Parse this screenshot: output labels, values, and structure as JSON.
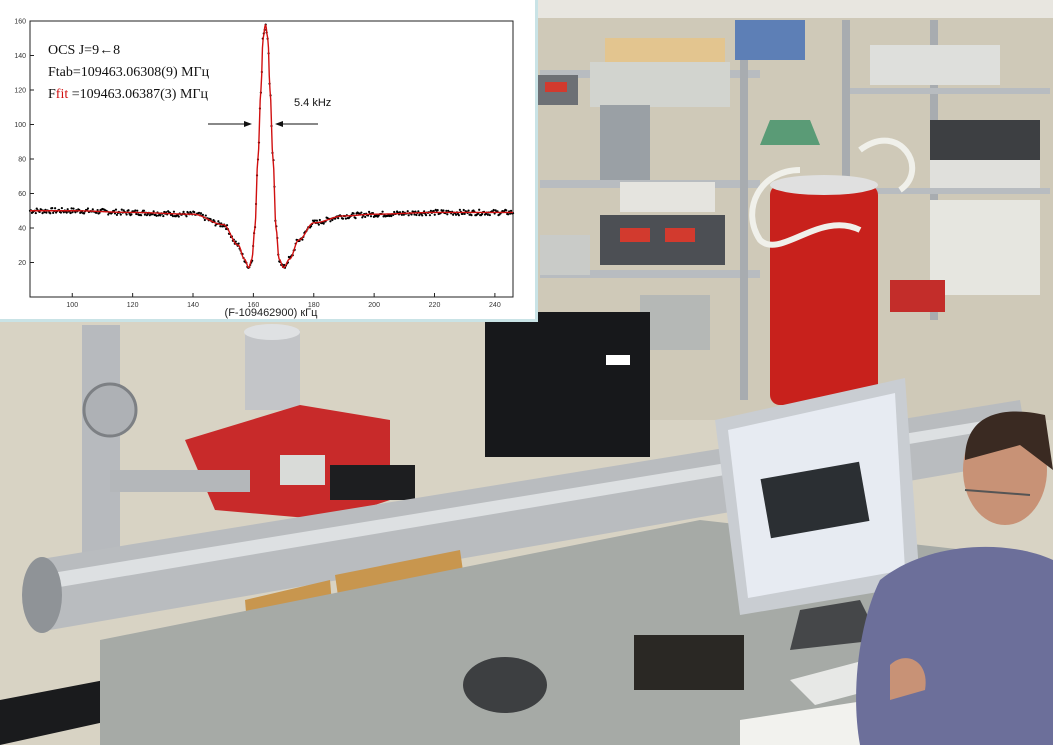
{
  "chart_data": {
    "type": "line",
    "title": "",
    "xlabel": "(F-109462900) кГц",
    "ylabel": "",
    "xlim": [
      86,
      246
    ],
    "ylim": [
      0,
      160
    ],
    "x_ticks": [
      "100",
      "120",
      "140",
      "160",
      "180",
      "200",
      "220",
      "240"
    ],
    "y_ticks": [
      "20",
      "40",
      "60",
      "80",
      "100",
      "120",
      "140",
      "160"
    ],
    "grid": false,
    "annotations": {
      "line1": "OCS J=9←8",
      "line2": "Ftab=109463.06308(9) МГц",
      "line3_prefix": "F",
      "line3_fit": "fit",
      "line3_rest": " =109463.06387(3) МГц",
      "width": "5.4 kHz"
    },
    "series": [
      {
        "color": "#000000",
        "style": "points",
        "x": [
          86,
          100,
          120,
          140,
          150,
          155,
          157,
          158.5,
          159.5,
          160.5,
          161.5,
          162.5,
          163.2,
          164,
          164.8,
          165.5,
          166.5,
          167.5,
          168.5,
          170,
          172,
          175,
          180,
          190,
          200,
          220,
          246
        ],
        "y": [
          50,
          50,
          49,
          48,
          42,
          30,
          22,
          17,
          22,
          40,
          80,
          120,
          150,
          158,
          150,
          120,
          80,
          40,
          22,
          17,
          22,
          33,
          43,
          47,
          48,
          49,
          49
        ]
      },
      {
        "color": "#d01010",
        "style": "line",
        "x": [
          86,
          100,
          120,
          140,
          150,
          155,
          157,
          158.5,
          159.5,
          160.5,
          161.5,
          162.5,
          163.2,
          164,
          164.8,
          165.5,
          166.5,
          167.5,
          168.5,
          170,
          172,
          175,
          180,
          190,
          200,
          220,
          246
        ],
        "y": [
          50,
          50,
          49,
          48,
          42,
          30,
          22,
          17,
          22,
          40,
          80,
          120,
          150,
          158,
          150,
          120,
          80,
          40,
          22,
          17,
          22,
          33,
          43,
          47,
          48,
          49,
          49
        ]
      }
    ]
  },
  "photo": {
    "scene": "laboratory",
    "colors": {
      "wall": "#d8d3c4",
      "tube": "#b9bcbf",
      "red_cylinder": "#c8211c",
      "pump_red": "#c82a2a",
      "bench": "#a9ada8",
      "monitor": "#c9cdd2",
      "shirt": "#6c6f9a",
      "skin": "#c89276"
    }
  }
}
